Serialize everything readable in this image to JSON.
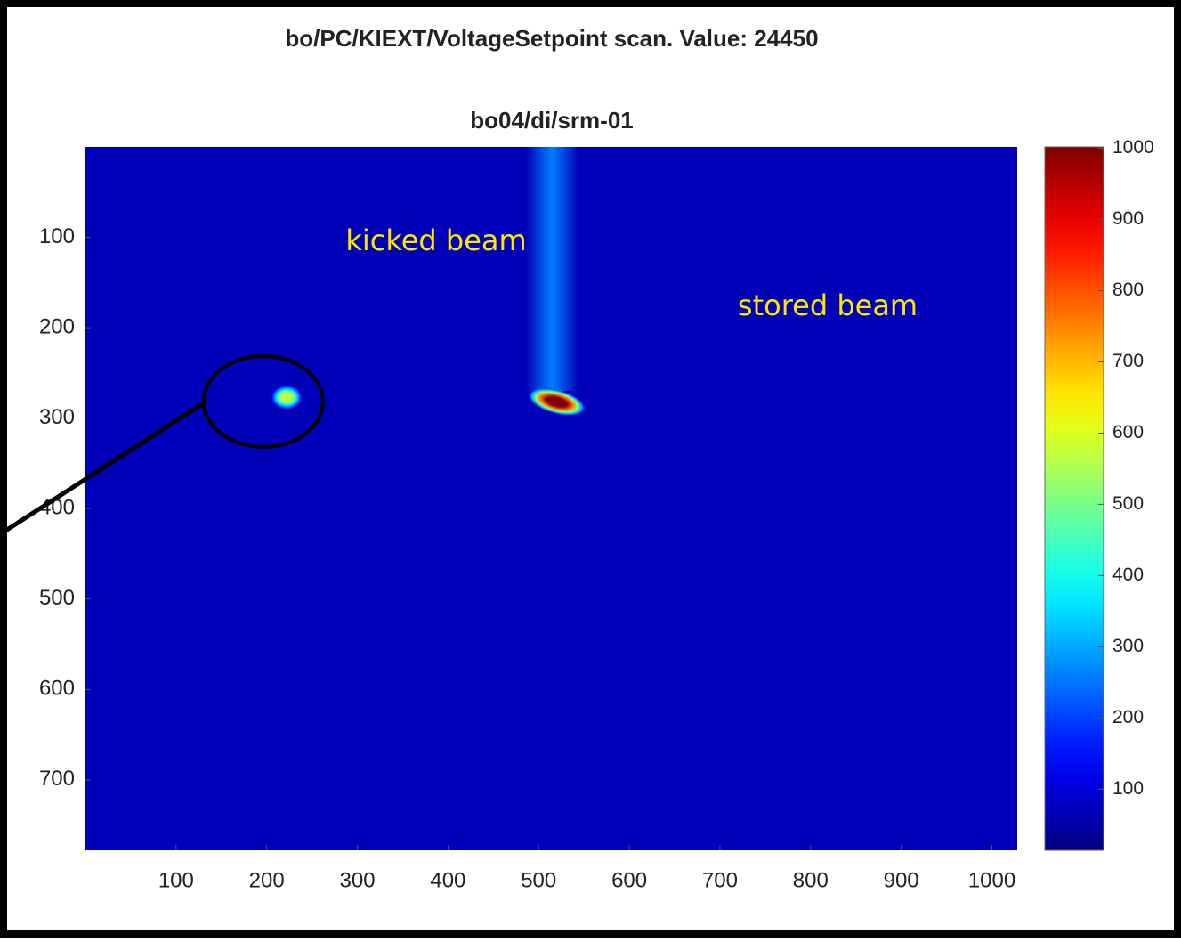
{
  "chart_data": {
    "type": "heatmap",
    "title": "bo/PC/KIEXT/VoltageSetpoint scan. Value: 24450",
    "subtitle": "bo04/di/srm-01",
    "xlim": [
      0,
      1028
    ],
    "xticks": [
      100,
      200,
      300,
      400,
      500,
      600,
      700,
      800,
      900,
      1000
    ],
    "ylim": [
      0,
      778
    ],
    "yticks": [
      100,
      200,
      300,
      400,
      500,
      600,
      700
    ],
    "clim": [
      14,
      1002
    ],
    "cticks": [
      100,
      200,
      300,
      400,
      500,
      600,
      700,
      800,
      900,
      1000
    ],
    "colormap": "jet",
    "background": 70,
    "streak": {
      "x": 515,
      "y": 270,
      "value": 260
    },
    "spots": [
      {
        "x": 222,
        "y": 277,
        "value": 560
      },
      {
        "x": 520,
        "y": 282,
        "value": 1000
      }
    ],
    "annotations": [
      {
        "text": "kicked beam"
      },
      {
        "text": "stored beam"
      }
    ]
  }
}
